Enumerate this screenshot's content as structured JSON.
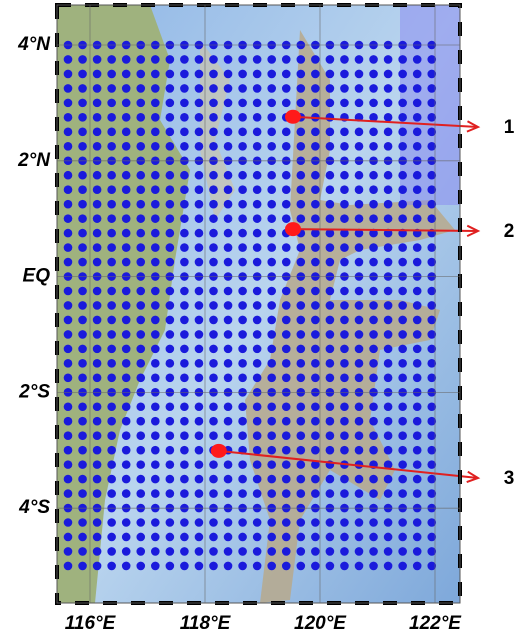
{
  "lat_ticks": [
    {
      "value": 4,
      "label": "4°N"
    },
    {
      "value": 2,
      "label": "2°N"
    },
    {
      "value": 0,
      "label": "EQ"
    },
    {
      "value": -2,
      "label": "2°S"
    },
    {
      "value": -4,
      "label": "4°S"
    }
  ],
  "lon_ticks": [
    {
      "value": 116,
      "label": "116°E"
    },
    {
      "value": 118,
      "label": "118°E"
    },
    {
      "value": 120,
      "label": "120°E"
    },
    {
      "value": 122,
      "label": "122°E"
    }
  ],
  "sites": [
    {
      "label": "1",
      "lon": 119.53,
      "lat": 2.76
    },
    {
      "label": "2",
      "lon": 119.53,
      "lat": 0.82
    },
    {
      "label": "3",
      "lon": 118.24,
      "lat": -3.01
    }
  ]
}
